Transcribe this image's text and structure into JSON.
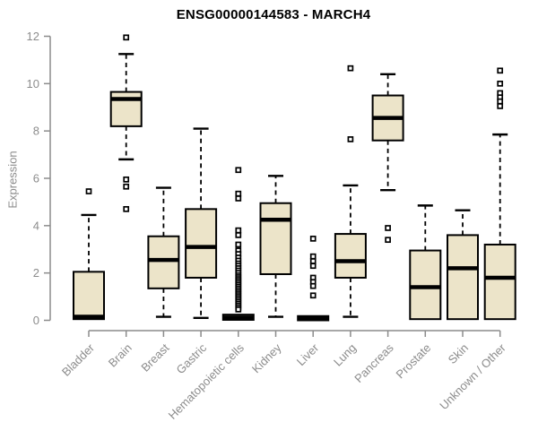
{
  "colors": {
    "box_fill": "#ece4c9",
    "box_stroke": "#000000",
    "median": "#000000",
    "whisker": "#000000",
    "outlier_stroke": "#000000",
    "outlier_fill": "#ffffff",
    "axis": "#8c8c8c",
    "tick_label": "#8c8c8c",
    "title": "#000000",
    "background": "#ffffff"
  },
  "chart_data": {
    "type": "boxplot",
    "title": "ENSG00000144583 - MARCH4",
    "xlabel": "",
    "ylabel": "Expression",
    "ylim": [
      0,
      12
    ],
    "yticks": [
      0,
      2,
      4,
      6,
      8,
      10,
      12
    ],
    "grid": false,
    "legend": false,
    "categories": [
      "Bladder",
      "Brain",
      "Breast",
      "Gastric",
      "Hematopoietic cells",
      "Kidney",
      "Liver",
      "Lung",
      "Pancreas",
      "Prostate",
      "Skin",
      "Unknown / Other"
    ],
    "boxes": [
      {
        "category": "Bladder",
        "whisker_low": null,
        "q1": 0.05,
        "median": 0.15,
        "q3": 2.05,
        "whisker_high": 4.45,
        "outliers": [
          5.45
        ]
      },
      {
        "category": "Brain",
        "whisker_low": 6.8,
        "q1": 8.2,
        "median": 9.35,
        "q3": 9.65,
        "whisker_high": 11.25,
        "outliers": [
          11.95,
          5.95,
          5.65,
          4.7
        ]
      },
      {
        "category": "Breast",
        "whisker_low": 0.15,
        "q1": 1.35,
        "median": 2.55,
        "q3": 3.55,
        "whisker_high": 5.6,
        "outliers": []
      },
      {
        "category": "Gastric",
        "whisker_low": 0.1,
        "q1": 1.8,
        "median": 3.1,
        "q3": 4.7,
        "whisker_high": 8.1,
        "outliers": []
      },
      {
        "category": "Hematopoietic cells",
        "whisker_low": null,
        "q1": 0.02,
        "median": 0.12,
        "q3": 0.24,
        "whisker_high": null,
        "outliers": [
          6.35,
          5.35,
          5.15,
          3.8,
          3.6,
          3.2,
          2.95,
          2.8,
          2.65,
          2.52,
          2.4,
          2.3,
          2.2,
          2.1,
          2.0,
          1.9,
          1.82,
          1.74,
          1.66,
          1.58,
          1.5,
          1.42,
          1.34,
          1.26,
          1.18,
          1.1,
          1.02,
          0.94,
          0.86,
          0.78,
          0.7,
          0.62,
          0.54,
          0.46
        ]
      },
      {
        "category": "Kidney",
        "whisker_low": 0.15,
        "q1": 1.95,
        "median": 4.25,
        "q3": 4.95,
        "whisker_high": 6.1,
        "outliers": []
      },
      {
        "category": "Liver",
        "whisker_low": null,
        "q1": 0.0,
        "median": 0.08,
        "q3": 0.18,
        "whisker_high": null,
        "outliers": [
          3.45,
          2.7,
          2.5,
          2.3,
          1.8,
          1.62,
          1.45,
          1.05
        ]
      },
      {
        "category": "Lung",
        "whisker_low": 0.15,
        "q1": 1.8,
        "median": 2.5,
        "q3": 3.65,
        "whisker_high": 5.7,
        "outliers": [
          10.65,
          7.65
        ]
      },
      {
        "category": "Pancreas",
        "whisker_low": 5.5,
        "q1": 7.6,
        "median": 8.55,
        "q3": 9.5,
        "whisker_high": 10.4,
        "outliers": [
          3.9,
          3.4
        ]
      },
      {
        "category": "Prostate",
        "whisker_low": null,
        "q1": 0.05,
        "median": 1.4,
        "q3": 2.95,
        "whisker_high": 4.85,
        "outliers": []
      },
      {
        "category": "Skin",
        "whisker_low": null,
        "q1": 0.05,
        "median": 2.2,
        "q3": 3.6,
        "whisker_high": 4.65,
        "outliers": []
      },
      {
        "category": "Unknown / Other",
        "whisker_low": null,
        "q1": 0.05,
        "median": 1.8,
        "q3": 3.2,
        "whisker_high": 7.85,
        "outliers": [
          10.55,
          10.0,
          9.6,
          9.42,
          9.25,
          9.05
        ]
      }
    ]
  }
}
